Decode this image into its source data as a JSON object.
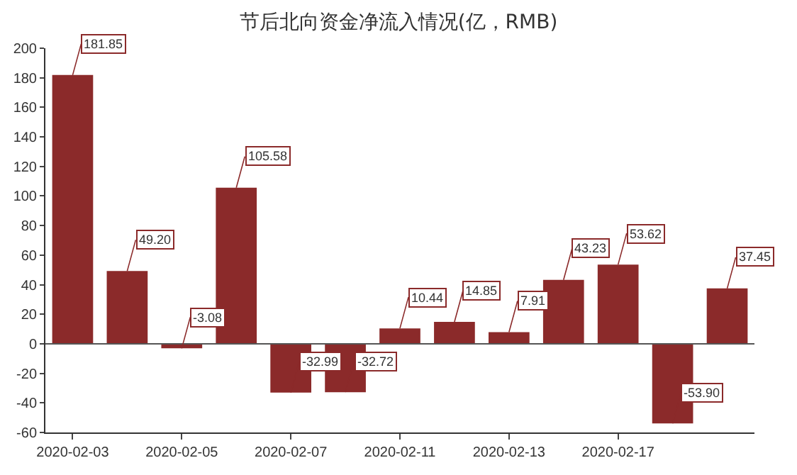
{
  "chart_data": {
    "type": "bar",
    "title": "节后北向资金净流入情况(亿，RMB)",
    "categories": [
      "2020-02-03",
      null,
      "2020-02-05",
      null,
      "2020-02-07",
      null,
      "2020-02-11",
      null,
      "2020-02-13",
      null,
      "2020-02-17",
      null,
      null
    ],
    "values": [
      181.85,
      49.2,
      -3.08,
      105.58,
      -32.99,
      -32.72,
      10.44,
      14.85,
      7.91,
      43.23,
      53.62,
      -53.9,
      37.45
    ],
    "value_labels": [
      "181.85",
      "49.20",
      "-3.08",
      "105.58",
      "-32.99",
      "-32.72",
      "10.44",
      "14.85",
      "7.91",
      "43.23",
      "53.62",
      "-53.90",
      "37.45"
    ],
    "color": "#8b2a2a",
    "ylim": [
      -60,
      200
    ],
    "yticks": [
      -60,
      -40,
      -20,
      0,
      20,
      40,
      60,
      80,
      100,
      120,
      140,
      160,
      180,
      200
    ],
    "legend": false
  }
}
